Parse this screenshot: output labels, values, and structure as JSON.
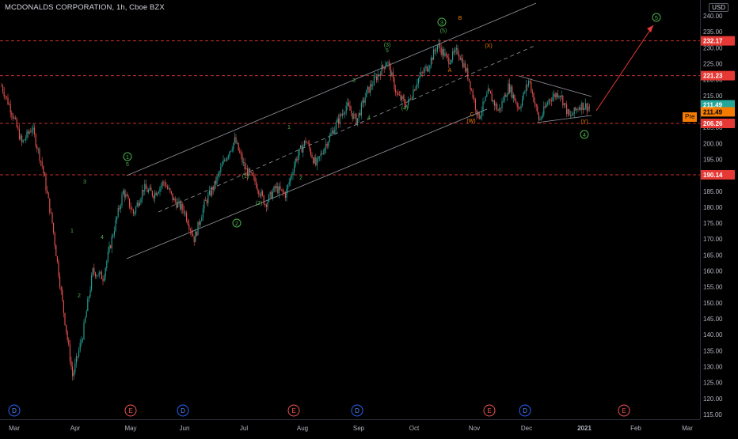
{
  "header": {
    "title": "MCDONALDS CORPORATION, 1h, Cboe BZX",
    "currency": "USD"
  },
  "chart_data": {
    "type": "candlestick",
    "title": "MCDONALDS CORPORATION, 1h, Cboe BZX",
    "ylim": [
      114,
      245
    ],
    "y_ticks": [
      240,
      235,
      230,
      225,
      220,
      215,
      210,
      205,
      200,
      195,
      190,
      185,
      180,
      175,
      170,
      165,
      160,
      155,
      150,
      145,
      140,
      135,
      130,
      125,
      120,
      115
    ],
    "x_ticks": [
      "Mar",
      "Apr",
      "May",
      "Jun",
      "Jul",
      "Aug",
      "Sep",
      "Oct",
      "Nov",
      "Dec",
      "2021",
      "Feb",
      "Mar"
    ],
    "price_labels": [
      {
        "value": "232.17",
        "price": 232.17,
        "color": "#e53935"
      },
      {
        "value": "221.23",
        "price": 221.23,
        "color": "#e53935"
      },
      {
        "value": "211.49",
        "price": 212.1,
        "color": "#26a69a"
      },
      {
        "value": "211.49",
        "price": 209.9,
        "color": "#f57c00"
      },
      {
        "value": "206.26",
        "price": 206.26,
        "color": "#e53935"
      },
      {
        "value": "190.14",
        "price": 190.14,
        "color": "#e53935"
      }
    ],
    "pre_label": "Pre",
    "horizontal_levels": [
      232.17,
      221.23,
      206.26,
      190.14
    ],
    "price_path": [
      [
        "Mar",
        218
      ],
      [
        "Mar",
        210
      ],
      [
        "Mar",
        200
      ],
      [
        "Mar",
        205
      ],
      [
        "Mar",
        193
      ],
      [
        "Mar",
        175
      ],
      [
        "Mar",
        150
      ],
      [
        "Mar",
        127
      ],
      [
        "Mar",
        140
      ],
      [
        "Mar",
        160
      ],
      [
        "Mar",
        158
      ],
      [
        "Apr",
        172
      ],
      [
        "Apr",
        185
      ],
      [
        "Apr",
        178
      ],
      [
        "Apr",
        186
      ],
      [
        "Apr",
        184
      ],
      [
        "Apr",
        188
      ],
      [
        "May",
        182
      ],
      [
        "May",
        179
      ],
      [
        "May",
        170
      ],
      [
        "May",
        181
      ],
      [
        "May",
        187
      ],
      [
        "Jun",
        195
      ],
      [
        "Jun",
        201
      ],
      [
        "Jun",
        192
      ],
      [
        "Jun",
        188
      ],
      [
        "Jul",
        181
      ],
      [
        "Jul",
        186
      ],
      [
        "Jul",
        184
      ],
      [
        "Jul",
        195
      ],
      [
        "Jul",
        201
      ],
      [
        "Aug",
        193
      ],
      [
        "Aug",
        200
      ],
      [
        "Aug",
        206
      ],
      [
        "Aug",
        212
      ],
      [
        "Aug",
        207
      ],
      [
        "Aug",
        216
      ],
      [
        "Sep",
        221
      ],
      [
        "Sep",
        226
      ],
      [
        "Sep",
        215
      ],
      [
        "Sep",
        212
      ],
      [
        "Sep",
        220
      ],
      [
        "Oct",
        224
      ],
      [
        "Oct",
        231
      ],
      [
        "Oct",
        226
      ],
      [
        "Oct",
        229
      ],
      [
        "Oct",
        221
      ],
      [
        "Oct",
        208
      ],
      [
        "Nov",
        216
      ],
      [
        "Nov",
        210
      ],
      [
        "Nov",
        218
      ],
      [
        "Nov",
        211
      ],
      [
        "Nov",
        220
      ],
      [
        "Dec",
        207
      ],
      [
        "Dec",
        214
      ],
      [
        "Dec",
        216
      ],
      [
        "Dec",
        208
      ],
      [
        "2021",
        212
      ],
      [
        "2021",
        211.5
      ]
    ],
    "wave_labels": [
      {
        "text": "3",
        "kind": "green"
      },
      {
        "text": "1",
        "kind": "green"
      },
      {
        "text": "4",
        "kind": "green"
      },
      {
        "text": "2",
        "kind": "green"
      },
      {
        "text": "5",
        "kind": "green"
      },
      {
        "text": "(1)",
        "kind": "green"
      },
      {
        "text": "(2)",
        "kind": "green"
      },
      {
        "text": "1",
        "kind": "green"
      },
      {
        "text": "2",
        "kind": "green"
      },
      {
        "text": "3",
        "kind": "green"
      },
      {
        "text": "4",
        "kind": "green"
      },
      {
        "text": "5",
        "kind": "green"
      },
      {
        "text": "(3)",
        "kind": "green"
      },
      {
        "text": "(4)",
        "kind": "green"
      },
      {
        "text": "(5)",
        "kind": "green"
      },
      {
        "text": "1",
        "kind": "green-circle"
      },
      {
        "text": "2",
        "kind": "green-circle"
      },
      {
        "text": "3",
        "kind": "green-circle"
      },
      {
        "text": "4",
        "kind": "green-circle"
      },
      {
        "text": "5",
        "kind": "green-circle"
      },
      {
        "text": "A",
        "kind": "orange"
      },
      {
        "text": "B",
        "kind": "orange"
      },
      {
        "text": "C",
        "kind": "orange"
      },
      {
        "text": "(X)",
        "kind": "orange"
      },
      {
        "text": "(W)",
        "kind": "orange"
      },
      {
        "text": "(Y)",
        "kind": "orange"
      }
    ],
    "events": [
      {
        "label": "D",
        "month": "Mar",
        "type": "dividend"
      },
      {
        "label": "E",
        "month": "May",
        "type": "earnings"
      },
      {
        "label": "D",
        "month": "Jun",
        "type": "dividend"
      },
      {
        "label": "E",
        "month": "Aug",
        "type": "earnings"
      },
      {
        "label": "D",
        "month": "Sep",
        "type": "dividend"
      },
      {
        "label": "E",
        "month": "Nov",
        "type": "earnings"
      },
      {
        "label": "D",
        "month": "Dec",
        "type": "dividend"
      },
      {
        "label": "E",
        "month": "Feb",
        "type": "earnings"
      }
    ],
    "colors": {
      "up": "#26a69a",
      "down": "#ef5350",
      "level": "#e53935",
      "wave_green": "#4caf50",
      "wave_orange": "#f57c00",
      "projection": "#e53935",
      "channel": "#9598a1"
    }
  }
}
